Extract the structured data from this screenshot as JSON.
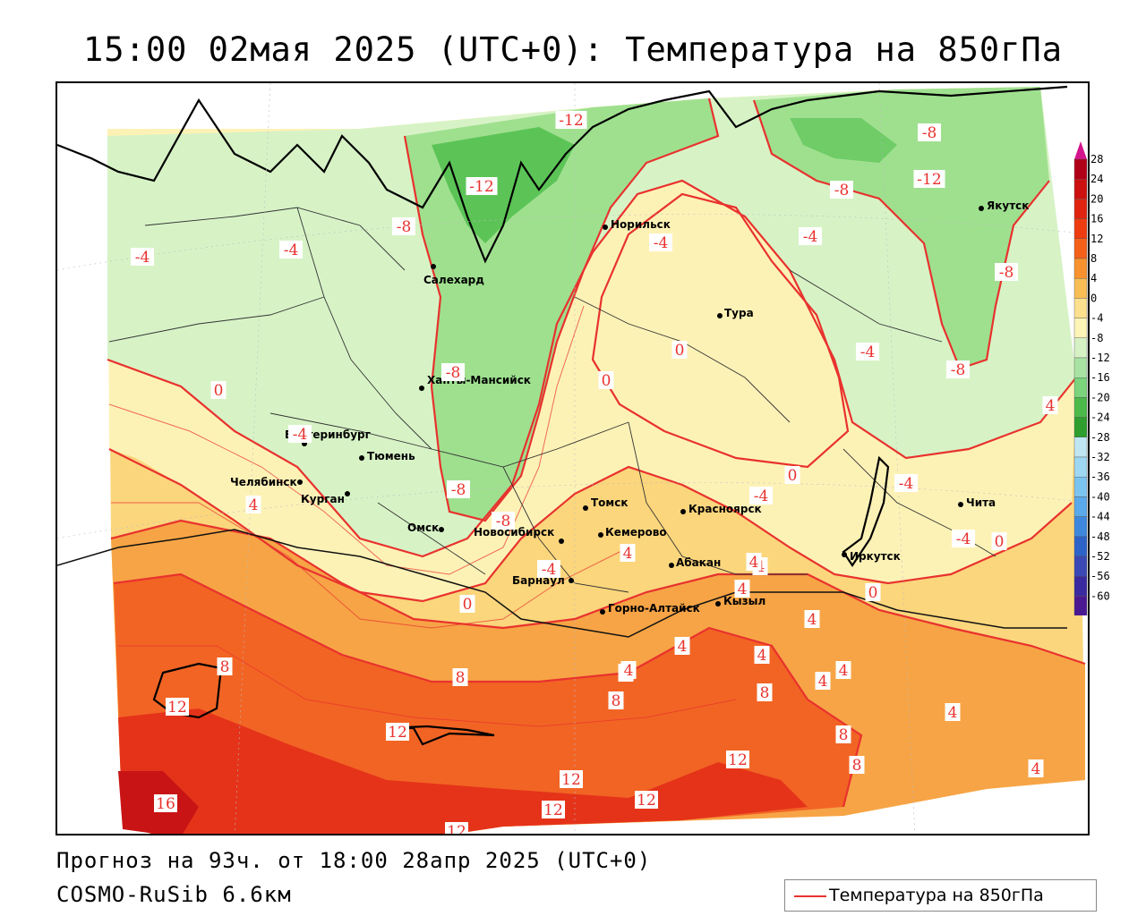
{
  "title": "15:00 02мая 2025 (UTC+0): Температура на 850гПа",
  "footer": {
    "forecast": "Прогноз на 93ч. от 18:00 28апр 2025 (UTC+0)",
    "model": "COSMO-RuSib 6.6км"
  },
  "legend": {
    "label": "Температура на 850гПа",
    "line_color": "#e8322e"
  },
  "colorbar": {
    "ticks": [
      "28",
      "24",
      "20",
      "16",
      "12",
      "8",
      "4",
      "0",
      "-4",
      "-8",
      "-12",
      "-16",
      "-20",
      "-24",
      "-28",
      "-32",
      "-36",
      "-40",
      "-44",
      "-48",
      "-52",
      "-56",
      "-60"
    ],
    "colors": [
      "#b00018",
      "#cc1010",
      "#e02410",
      "#ee3c10",
      "#f4601a",
      "#f7922e",
      "#f9bd55",
      "#fde08e",
      "#fdf4b8",
      "#d6f2c4",
      "#a8e3a3",
      "#7bd37c",
      "#4cba4a",
      "#2e9e2e",
      "#bfe6f2",
      "#9ed7f2",
      "#7cc4f0",
      "#5aa9ea",
      "#3d87dd",
      "#2d62c7",
      "#3a48b4",
      "#3a2aa0",
      "#4a1890"
    ],
    "top_arrow_color": "#d4148c",
    "bottom_arrow_color": "#8a1ac8"
  },
  "cities": [
    {
      "name": "Норильск"
    },
    {
      "name": "Якутск"
    },
    {
      "name": "Салехард"
    },
    {
      "name": "Тура"
    },
    {
      "name": "Ханты-Мансийск"
    },
    {
      "name": "Екатеринбург"
    },
    {
      "name": "Тюмень"
    },
    {
      "name": "Челябинск"
    },
    {
      "name": "Курган"
    },
    {
      "name": "Омск"
    },
    {
      "name": "Новосибирск"
    },
    {
      "name": "Томск"
    },
    {
      "name": "Кемерово"
    },
    {
      "name": "Красноярск"
    },
    {
      "name": "Абакан"
    },
    {
      "name": "Барнаул"
    },
    {
      "name": "Горно-Алтайск"
    },
    {
      "name": "Кызыл"
    },
    {
      "name": "Иркутск"
    },
    {
      "name": "Чита"
    }
  ],
  "isotherm_labels": [
    "-12",
    "-12",
    "-8",
    "-12",
    "-8",
    "-8",
    "-4",
    "-4",
    "-4",
    "-8",
    "-4",
    "-8",
    "-4",
    "-8",
    "-4",
    "-4",
    "-8",
    "0",
    "0",
    "0",
    "0",
    "-4",
    "-4",
    "4",
    "4",
    "4",
    "0",
    "-8",
    "0",
    "-4",
    "0",
    "4",
    "4",
    "4",
    "4",
    "4",
    "4",
    "4",
    "4",
    "4",
    "8",
    "12",
    "8",
    "8",
    "8",
    "8",
    "12",
    "12",
    "8",
    "12",
    "12",
    "12",
    "16",
    "12",
    "8",
    "4",
    "4",
    "4"
  ]
}
